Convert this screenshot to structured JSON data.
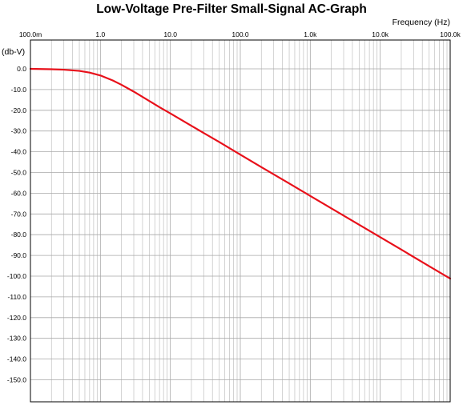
{
  "chart_data": {
    "type": "line",
    "title": "Low-Voltage Pre-Filter Small-Signal AC-Graph",
    "xlabel": "Frequency  (Hz)",
    "ylabel": "(db-V)",
    "x_scale": "log",
    "xlim": [
      0.1,
      100000
    ],
    "ylim": [
      -160,
      0
    ],
    "x_ticks": [
      0.1,
      1,
      10,
      100,
      1000,
      10000,
      100000
    ],
    "x_tick_labels": [
      "100.0m",
      "1.0",
      "10.0",
      "100.0",
      "1.0k",
      "10.0k",
      "100.0k"
    ],
    "y_ticks": [
      0,
      -10,
      -20,
      -30,
      -40,
      -50,
      -60,
      -70,
      -80,
      -90,
      -100,
      -110,
      -120,
      -130,
      -140,
      -150
    ],
    "y_tick_labels": [
      "0.0",
      "-10.0",
      "-20.0",
      "-30.0",
      "-40.0",
      "-50.0",
      "-60.0",
      "-70.0",
      "-80.0",
      "-90.0",
      "-100.0",
      "-110.0",
      "-120.0",
      "-130.0",
      "-140.0",
      "-150.0"
    ],
    "grid": true,
    "series": [
      {
        "color": "#e8101a",
        "x": [
          0.1,
          0.2,
          0.3,
          0.5,
          0.7,
          1,
          1.5,
          2,
          3,
          5,
          7,
          10,
          20,
          50,
          100,
          200,
          500,
          1000,
          2000,
          5000,
          10000,
          20000,
          50000,
          100000
        ],
        "y": [
          0,
          -0.2,
          -0.4,
          -1.0,
          -1.8,
          -3.2,
          -5.6,
          -7.7,
          -11.0,
          -15.5,
          -18.5,
          -21.5,
          -27.5,
          -35.3,
          -41.4,
          -47.4,
          -55.3,
          -61.3,
          -67.3,
          -75.2,
          -81.2,
          -87.2,
          -95.2,
          -101.2
        ]
      }
    ]
  }
}
